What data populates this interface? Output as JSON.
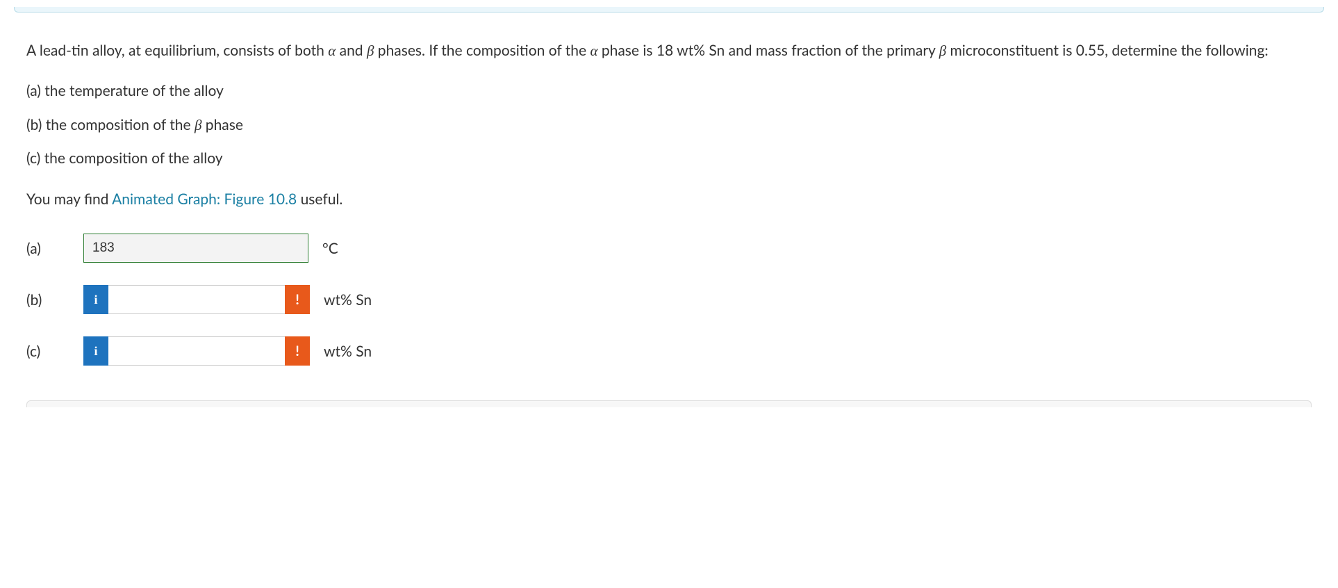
{
  "colors": {
    "link": "#1a7fa3",
    "info_badge_bg": "#1e73be",
    "warn_badge_bg": "#e8591b",
    "correct_border": "#2e7d32",
    "banner_bg": "#eaf6fb",
    "banner_border": "#b8dce8"
  },
  "question": {
    "intro_pre": "A lead-tin alloy, at equilibrium, consists of both ",
    "alpha": "α",
    "intro_mid1": " and ",
    "beta": "β",
    "intro_mid2": " phases.  If the composition of the ",
    "intro_mid3": " phase is 18 wt% Sn and mass fraction of the primary ",
    "intro_end": " microconstituent is 0.55, determine the following:",
    "part_a": "(a) the temperature of the alloy",
    "part_b_pre": "(b) the composition of the ",
    "part_b_post": " phase",
    "part_c": "(c) the composition of the alloy",
    "hint_pre": "You may find ",
    "hint_link": "Animated Graph: Figure 10.8",
    "hint_post": " useful."
  },
  "answers": {
    "a": {
      "label": "(a)",
      "value": "183",
      "unit": "°C",
      "state": "correct"
    },
    "b": {
      "label": "(b)",
      "value": "",
      "unit": "wt% Sn",
      "info_glyph": "i",
      "warn_glyph": "!"
    },
    "c": {
      "label": "(c)",
      "value": "",
      "unit": "wt% Sn",
      "info_glyph": "i",
      "warn_glyph": "!"
    }
  }
}
